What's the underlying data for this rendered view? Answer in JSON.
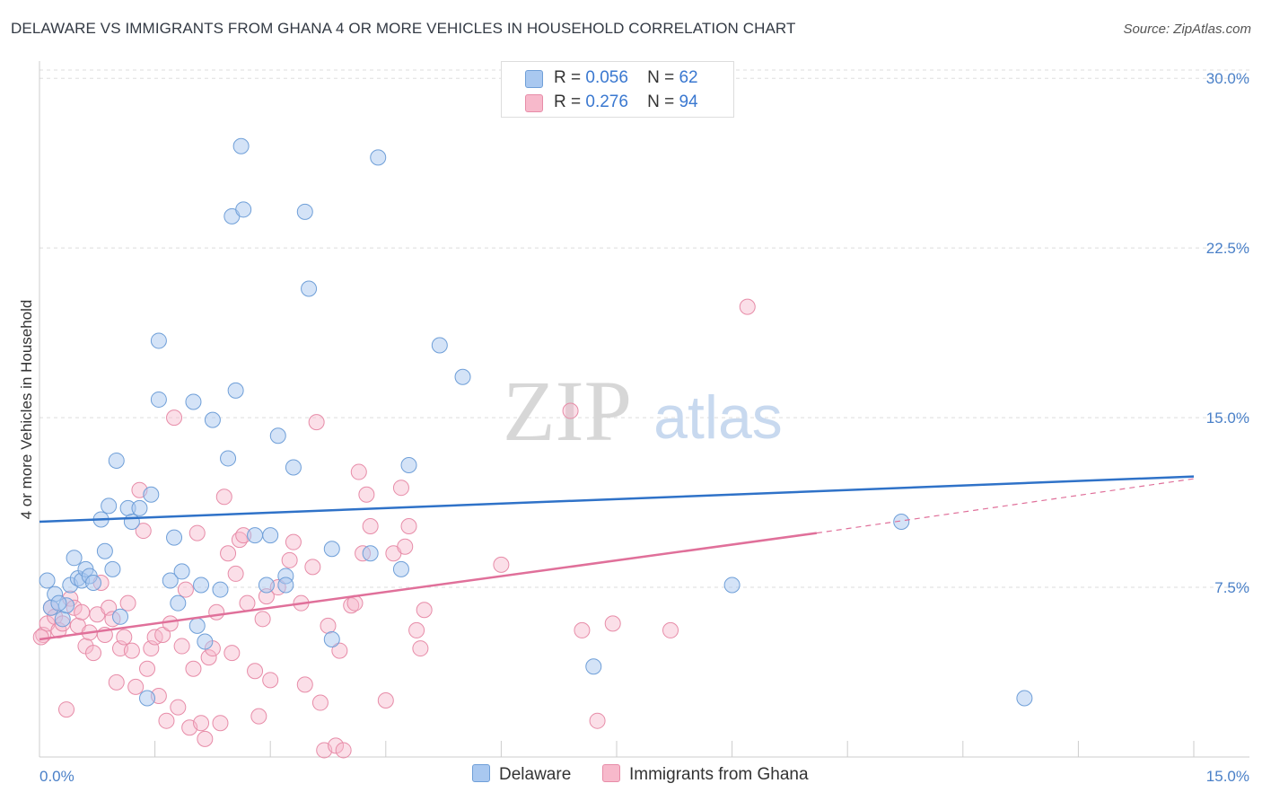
{
  "title": "DELAWARE VS IMMIGRANTS FROM GHANA 4 OR MORE VEHICLES IN HOUSEHOLD CORRELATION CHART",
  "source": "Source: ZipAtlas.com",
  "watermark": {
    "zip": "ZIP",
    "atlas": "atlas"
  },
  "legend": {
    "rows": [
      {
        "r_label": "R =",
        "r_value": "0.056",
        "n_label": "N =",
        "n_value": "62"
      },
      {
        "r_label": "R =",
        "r_value": "0.276",
        "n_label": "N =",
        "n_value": "94"
      }
    ]
  },
  "bottom_legend": [
    "Delaware",
    "Immigrants from Ghana"
  ],
  "colors": {
    "delaware_fill": "#a9c8f0",
    "delaware_stroke": "#6f9fd8",
    "delaware_line": "#2f72c8",
    "ghana_fill": "#f7b9cb",
    "ghana_stroke": "#e78ca8",
    "ghana_line": "#e0709a",
    "tick_text": "#4a80c8",
    "grid": "#dddddd"
  },
  "chart_data": {
    "type": "scatter",
    "title": "DELAWARE VS IMMIGRANTS FROM GHANA 4 OR MORE VEHICLES IN HOUSEHOLD CORRELATION CHART",
    "xlabel": "",
    "ylabel": "4 or more Vehicles in Household",
    "xlim": [
      0,
      15
    ],
    "ylim": [
      0,
      31
    ],
    "x_tick_labels": [
      "0.0%",
      "15.0%"
    ],
    "y_ticks": [
      7.5,
      15.0,
      22.5,
      30.0
    ],
    "y_tick_labels": [
      "7.5%",
      "15.0%",
      "22.5%",
      "30.0%"
    ],
    "grid": "horizontal dashed",
    "legend_position": "top-center",
    "series": [
      {
        "name": "Delaware",
        "R": 0.056,
        "N": 62,
        "trend": {
          "x": [
            0,
            15
          ],
          "y": [
            10.4,
            12.4
          ]
        },
        "points": [
          [
            0.1,
            7.8
          ],
          [
            0.2,
            7.2
          ],
          [
            0.3,
            6.1
          ],
          [
            0.35,
            6.7
          ],
          [
            0.4,
            7.6
          ],
          [
            0.45,
            8.8
          ],
          [
            0.5,
            7.9
          ],
          [
            0.55,
            7.8
          ],
          [
            0.6,
            8.3
          ],
          [
            0.65,
            8.0
          ],
          [
            0.7,
            7.7
          ],
          [
            0.8,
            10.5
          ],
          [
            0.85,
            9.1
          ],
          [
            0.9,
            11.1
          ],
          [
            0.95,
            8.3
          ],
          [
            1.0,
            13.1
          ],
          [
            1.05,
            6.2
          ],
          [
            1.15,
            11.0
          ],
          [
            1.2,
            10.4
          ],
          [
            1.3,
            11.0
          ],
          [
            1.45,
            11.6
          ],
          [
            1.55,
            18.4
          ],
          [
            1.55,
            15.8
          ],
          [
            1.75,
            9.7
          ],
          [
            1.7,
            7.8
          ],
          [
            1.8,
            6.8
          ],
          [
            1.85,
            8.2
          ],
          [
            2.0,
            15.7
          ],
          [
            2.05,
            5.8
          ],
          [
            2.1,
            7.6
          ],
          [
            2.15,
            5.1
          ],
          [
            2.25,
            14.9
          ],
          [
            2.35,
            7.4
          ],
          [
            2.45,
            13.2
          ],
          [
            2.5,
            23.9
          ],
          [
            2.55,
            16.2
          ],
          [
            2.62,
            27.0
          ],
          [
            2.65,
            24.2
          ],
          [
            2.95,
            7.6
          ],
          [
            3.0,
            9.8
          ],
          [
            3.1,
            14.2
          ],
          [
            3.2,
            8.0
          ],
          [
            3.2,
            7.6
          ],
          [
            3.3,
            12.8
          ],
          [
            3.45,
            24.1
          ],
          [
            3.5,
            20.7
          ],
          [
            3.8,
            9.2
          ],
          [
            3.8,
            5.2
          ],
          [
            4.3,
            9.0
          ],
          [
            4.4,
            26.5
          ],
          [
            4.7,
            8.3
          ],
          [
            4.8,
            12.9
          ],
          [
            5.2,
            18.2
          ],
          [
            5.5,
            16.8
          ],
          [
            7.2,
            4.0
          ],
          [
            9.0,
            7.6
          ],
          [
            11.2,
            10.4
          ],
          [
            12.8,
            2.6
          ],
          [
            0.15,
            6.6
          ],
          [
            0.25,
            6.8
          ],
          [
            1.4,
            2.6
          ],
          [
            2.8,
            9.8
          ]
        ]
      },
      {
        "name": "Immigrants from Ghana",
        "R": 0.276,
        "N": 94,
        "trend": {
          "x": [
            0,
            10.1
          ],
          "y": [
            5.2,
            9.9
          ]
        },
        "trend_dashed": {
          "x": [
            10.1,
            15
          ],
          "y": [
            9.9,
            12.3
          ]
        },
        "points": [
          [
            0.05,
            5.4
          ],
          [
            0.1,
            5.9
          ],
          [
            0.15,
            6.6
          ],
          [
            0.2,
            6.2
          ],
          [
            0.25,
            5.6
          ],
          [
            0.3,
            5.9
          ],
          [
            0.35,
            2.1
          ],
          [
            0.4,
            7.0
          ],
          [
            0.45,
            6.6
          ],
          [
            0.5,
            5.8
          ],
          [
            0.55,
            6.4
          ],
          [
            0.6,
            4.9
          ],
          [
            0.65,
            5.5
          ],
          [
            0.7,
            4.6
          ],
          [
            0.75,
            6.3
          ],
          [
            0.8,
            7.7
          ],
          [
            0.85,
            5.4
          ],
          [
            0.9,
            6.6
          ],
          [
            0.95,
            6.1
          ],
          [
            1.0,
            3.3
          ],
          [
            1.05,
            4.8
          ],
          [
            1.1,
            5.3
          ],
          [
            1.15,
            6.8
          ],
          [
            1.2,
            4.7
          ],
          [
            1.25,
            3.1
          ],
          [
            1.3,
            11.8
          ],
          [
            1.35,
            10.0
          ],
          [
            1.4,
            3.9
          ],
          [
            1.45,
            4.8
          ],
          [
            1.5,
            5.3
          ],
          [
            1.55,
            2.7
          ],
          [
            1.6,
            5.4
          ],
          [
            1.65,
            1.6
          ],
          [
            1.7,
            5.9
          ],
          [
            1.75,
            15.0
          ],
          [
            1.8,
            2.2
          ],
          [
            1.85,
            4.9
          ],
          [
            1.9,
            7.4
          ],
          [
            1.95,
            1.3
          ],
          [
            2.0,
            3.9
          ],
          [
            2.05,
            9.9
          ],
          [
            2.1,
            1.5
          ],
          [
            2.15,
            0.8
          ],
          [
            2.2,
            4.4
          ],
          [
            2.25,
            4.8
          ],
          [
            2.3,
            6.4
          ],
          [
            2.35,
            1.5
          ],
          [
            2.4,
            11.5
          ],
          [
            2.45,
            9.0
          ],
          [
            2.5,
            4.6
          ],
          [
            2.55,
            8.1
          ],
          [
            2.6,
            9.6
          ],
          [
            2.65,
            9.8
          ],
          [
            2.7,
            6.8
          ],
          [
            2.8,
            3.8
          ],
          [
            2.85,
            1.8
          ],
          [
            2.9,
            6.1
          ],
          [
            2.95,
            7.1
          ],
          [
            3.0,
            3.4
          ],
          [
            3.1,
            7.5
          ],
          [
            3.25,
            8.7
          ],
          [
            3.3,
            9.5
          ],
          [
            3.4,
            6.8
          ],
          [
            3.45,
            3.2
          ],
          [
            3.55,
            8.4
          ],
          [
            3.6,
            14.8
          ],
          [
            3.65,
            2.4
          ],
          [
            3.7,
            0.3
          ],
          [
            3.75,
            5.8
          ],
          [
            3.85,
            0.5
          ],
          [
            3.9,
            4.7
          ],
          [
            3.95,
            0.3
          ],
          [
            4.05,
            6.7
          ],
          [
            4.1,
            6.8
          ],
          [
            4.15,
            12.6
          ],
          [
            4.2,
            9.0
          ],
          [
            4.25,
            11.6
          ],
          [
            4.3,
            10.2
          ],
          [
            4.5,
            2.5
          ],
          [
            4.6,
            9.0
          ],
          [
            4.7,
            11.9
          ],
          [
            4.75,
            9.3
          ],
          [
            4.8,
            10.2
          ],
          [
            4.9,
            5.6
          ],
          [
            4.95,
            4.8
          ],
          [
            5.0,
            6.5
          ],
          [
            6.0,
            8.5
          ],
          [
            6.9,
            15.3
          ],
          [
            7.05,
            5.6
          ],
          [
            7.25,
            1.6
          ],
          [
            7.45,
            5.9
          ],
          [
            8.2,
            5.6
          ],
          [
            9.2,
            19.9
          ],
          [
            0.02,
            5.3
          ]
        ]
      }
    ]
  }
}
